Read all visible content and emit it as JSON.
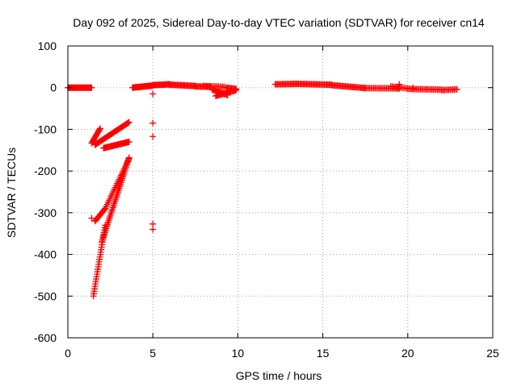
{
  "chart_data": {
    "type": "scatter",
    "title": "Day 092 of 2025, Sidereal Day-to-day VTEC variation (SDTVAR) for receiver cn14",
    "xlabel": "GPS time / hours",
    "ylabel": "SDTVAR / TECUs",
    "xlim": [
      0,
      25
    ],
    "ylim": [
      -600,
      100
    ],
    "xticks": [
      0,
      5,
      10,
      15,
      20,
      25
    ],
    "yticks": [
      100,
      0,
      -100,
      -200,
      -300,
      -400,
      -500,
      -600
    ],
    "grid": true,
    "marker": "+",
    "color": "#ff0000",
    "segments": [
      {
        "x0": 0.0,
        "y0": 0,
        "x1": 1.4,
        "y1": 0,
        "n": 30
      },
      {
        "x0": 1.4,
        "y0": -133,
        "x1": 1.9,
        "y1": -98,
        "n": 14
      },
      {
        "x0": 1.6,
        "y0": -137,
        "x1": 3.6,
        "y1": -83,
        "n": 40
      },
      {
        "x0": 2.1,
        "y0": -145,
        "x1": 3.6,
        "y1": -130,
        "n": 30
      },
      {
        "x0": 1.5,
        "y0": -500,
        "x1": 2.2,
        "y1": -330,
        "n": 30
      },
      {
        "x0": 1.6,
        "y0": -320,
        "x1": 2.2,
        "y1": -290,
        "n": 12
      },
      {
        "x0": 2.0,
        "y0": -370,
        "x1": 3.6,
        "y1": -168,
        "n": 45
      },
      {
        "x0": 2.2,
        "y0": -290,
        "x1": 3.6,
        "y1": -170,
        "n": 25
      },
      {
        "x0": 3.8,
        "y0": 0,
        "x1": 5.0,
        "y1": 5,
        "n": 25
      },
      {
        "x0": 5.0,
        "y0": 6,
        "x1": 6.0,
        "y1": 8,
        "n": 20
      },
      {
        "x0": 6.0,
        "y0": 7,
        "x1": 7.5,
        "y1": 4,
        "n": 25
      },
      {
        "x0": 7.5,
        "y0": 3,
        "x1": 8.4,
        "y1": 2,
        "n": 15
      },
      {
        "x0": 8.0,
        "y0": 4,
        "x1": 9.2,
        "y1": 2,
        "n": 15
      },
      {
        "x0": 8.5,
        "y0": -5,
        "x1": 9.4,
        "y1": -18,
        "n": 15
      },
      {
        "x0": 8.7,
        "y0": -20,
        "x1": 9.9,
        "y1": -6,
        "n": 20
      },
      {
        "x0": 9.3,
        "y0": 0,
        "x1": 9.9,
        "y1": -3,
        "n": 10
      },
      {
        "x0": 12.2,
        "y0": 8,
        "x1": 13.5,
        "y1": 9,
        "n": 20
      },
      {
        "x0": 13.5,
        "y0": 9,
        "x1": 15.5,
        "y1": 7,
        "n": 30
      },
      {
        "x0": 15.5,
        "y0": 6,
        "x1": 17.5,
        "y1": -1,
        "n": 30
      },
      {
        "x0": 17.5,
        "y0": -1,
        "x1": 19.5,
        "y1": -2,
        "n": 25
      },
      {
        "x0": 19.0,
        "y0": 3,
        "x1": 20.0,
        "y1": -2,
        "n": 12
      },
      {
        "x0": 20.0,
        "y0": -3,
        "x1": 22.0,
        "y1": -5,
        "n": 25
      },
      {
        "x0": 22.0,
        "y0": -6,
        "x1": 22.9,
        "y1": -4,
        "n": 12
      }
    ],
    "points": [
      {
        "x": 5.0,
        "y": -15
      },
      {
        "x": 5.0,
        "y": -85
      },
      {
        "x": 5.0,
        "y": -117
      },
      {
        "x": 5.0,
        "y": -327
      },
      {
        "x": 5.0,
        "y": -340
      },
      {
        "x": 1.4,
        "y": -313
      },
      {
        "x": 19.5,
        "y": 8
      },
      {
        "x": 20.3,
        "y": -1
      }
    ]
  }
}
